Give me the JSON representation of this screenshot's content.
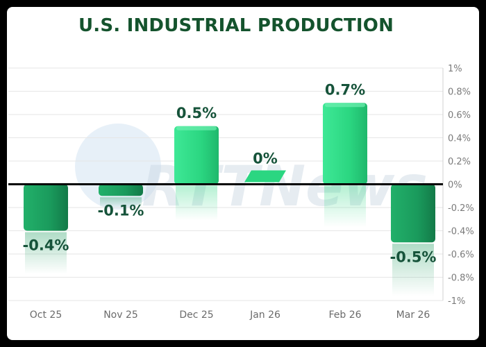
{
  "chart_data": {
    "type": "bar",
    "title": "U.S. INDUSTRIAL PRODUCTION",
    "categories": [
      "Oct 25",
      "Nov 25",
      "Dec 25",
      "Jan 26",
      "Feb 26",
      "Mar 26"
    ],
    "values": [
      -0.4,
      -0.1,
      0.5,
      0,
      0.7,
      -0.5
    ],
    "data_labels": [
      "-0.4%",
      "-0.1%",
      "0.5%",
      "0%",
      "0.7%",
      "-0.5%"
    ],
    "ylim": [
      -1,
      1
    ],
    "y_ticks": [
      "1%",
      "0.8%",
      "0.6%",
      "0.4%",
      "0.2%",
      "0%",
      "-0.2%",
      "-0.4%",
      "-0.6%",
      "-0.8%",
      "-1%"
    ],
    "y_tick_values": [
      1,
      0.8,
      0.6,
      0.4,
      0.2,
      0,
      -0.2,
      -0.4,
      -0.6,
      -0.8,
      -1
    ],
    "xlabel": "",
    "ylabel": "",
    "grid": true,
    "y_axis_side": "right",
    "colors": {
      "positive_bar": "#2bd681",
      "negative_bar": "#1a9a5c",
      "title": "#14532d",
      "label": "#16533a",
      "gridline": "#e6e6e6",
      "baseline": "#000000"
    }
  },
  "watermark": {
    "text": "RTTNews"
  }
}
